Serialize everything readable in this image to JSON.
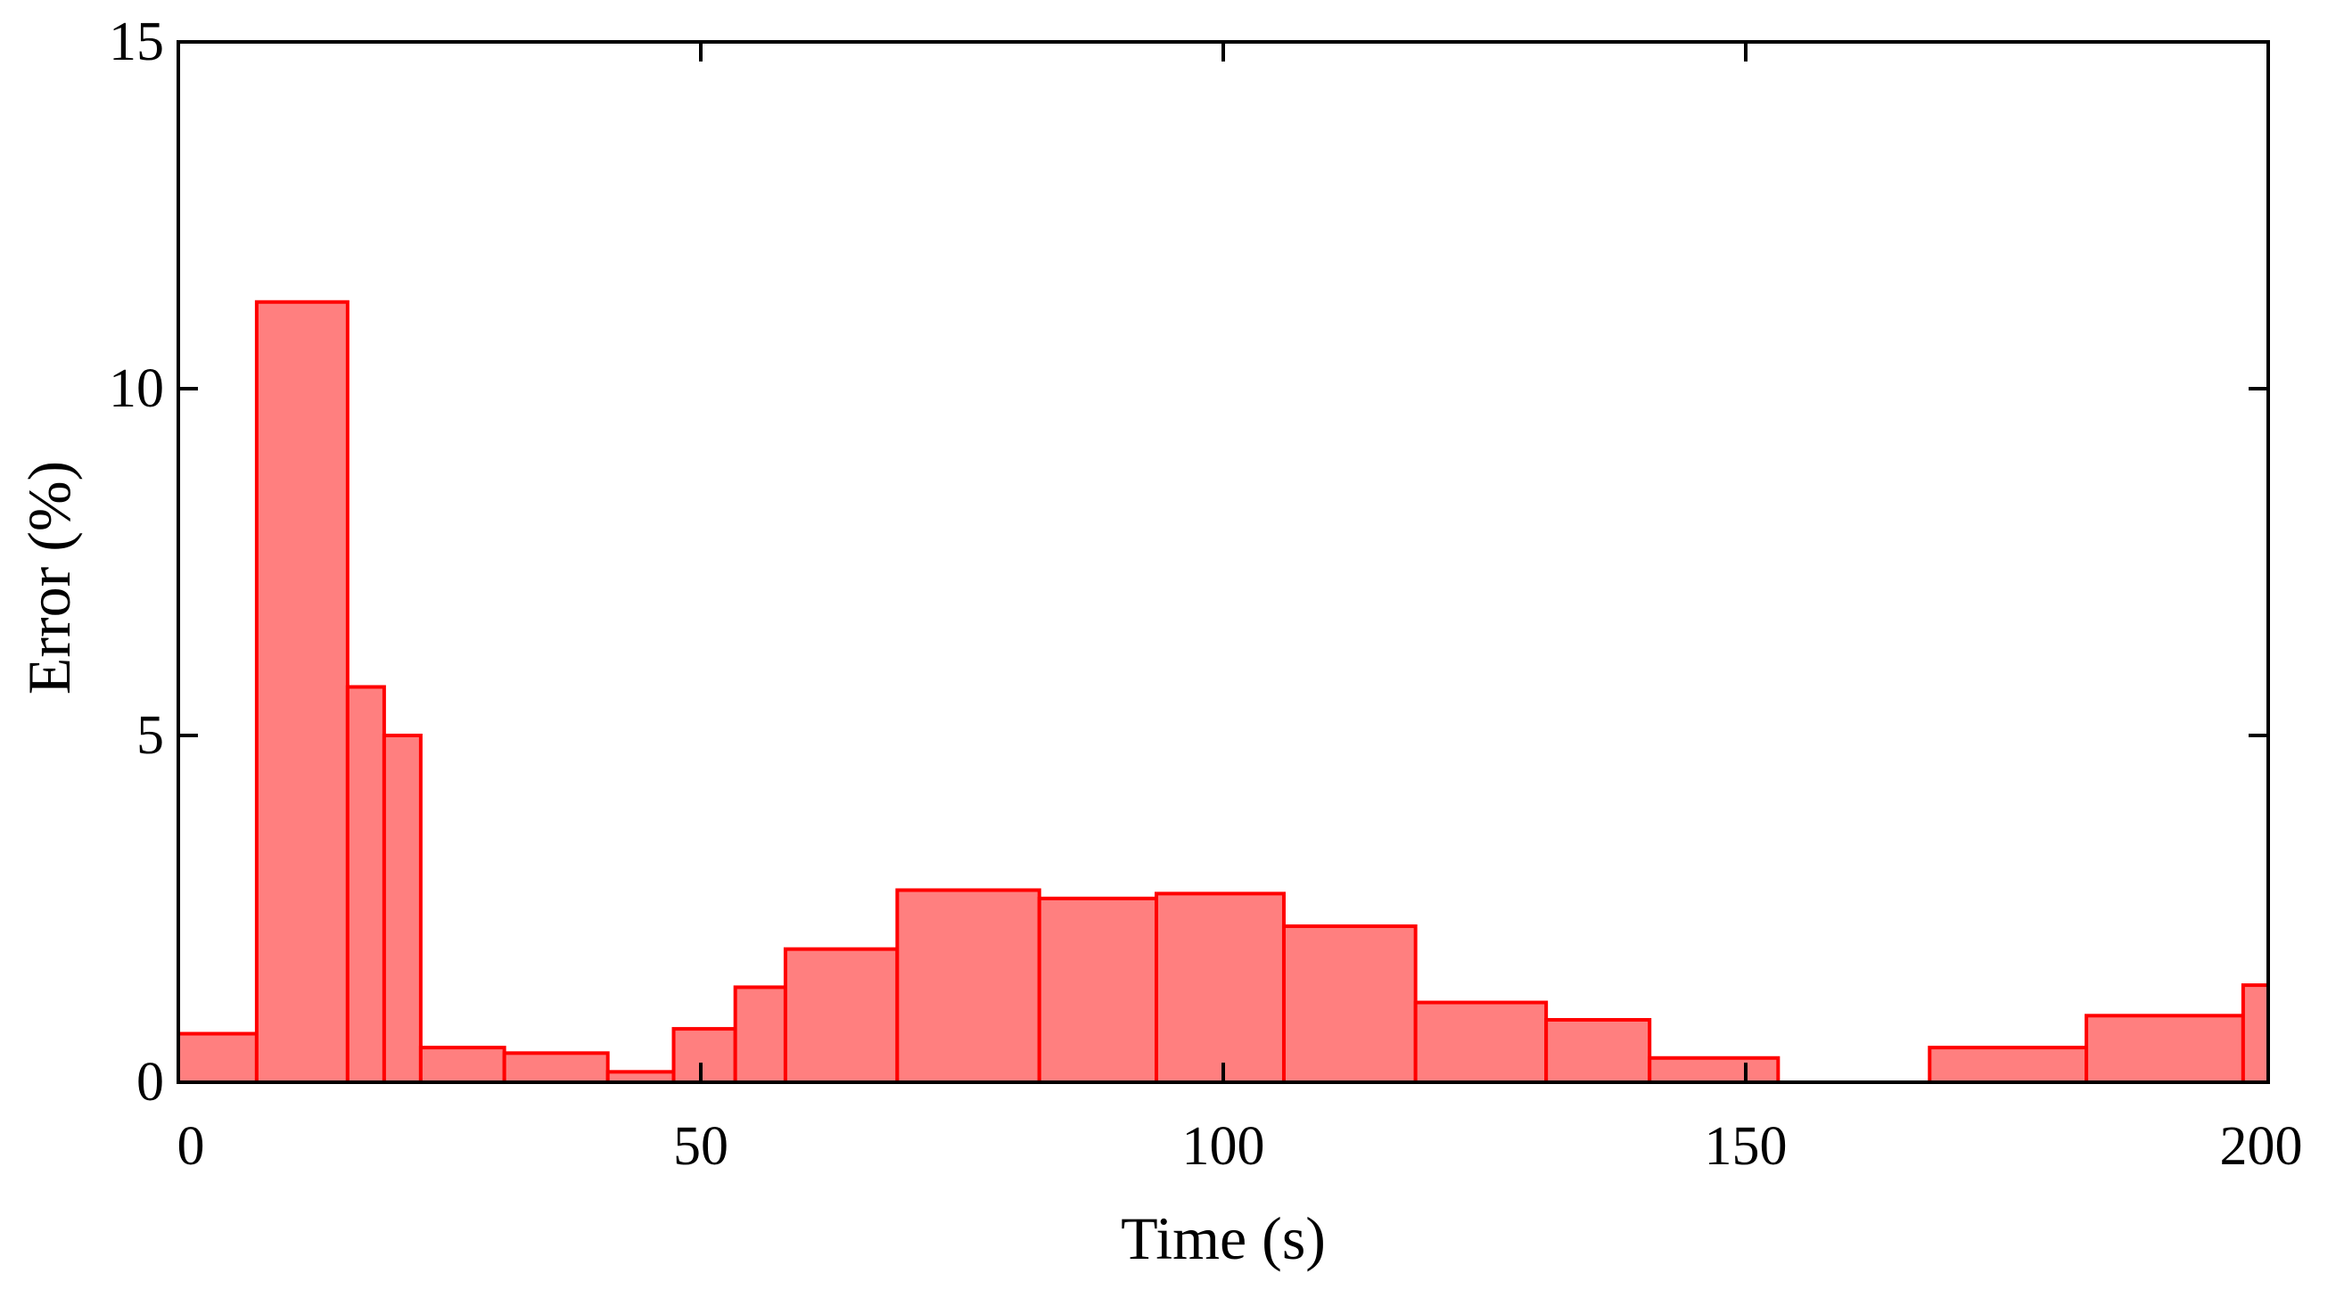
{
  "chart_data": {
    "type": "bar",
    "title": "",
    "xlabel": "Time (s)",
    "ylabel": "Error (%)",
    "xlim": [
      0,
      200
    ],
    "ylim": [
      0,
      15
    ],
    "xticks": [
      0,
      50,
      100,
      150,
      200
    ],
    "yticks": [
      0,
      5,
      10,
      15
    ],
    "grid": false,
    "bin_edges": [
      0,
      7.5,
      16.2,
      19.7,
      23.2,
      31.2,
      41.1,
      47.4,
      53.3,
      58.1,
      68.8,
      82.4,
      93.6,
      105.8,
      118.4,
      130.9,
      140.8,
      153.1,
      167.6,
      182.6,
      197.6,
      200
    ],
    "values": [
      0.7,
      11.25,
      5.7,
      5.0,
      0.5,
      0.42,
      0.15,
      0.77,
      1.37,
      1.92,
      2.77,
      2.65,
      2.72,
      2.25,
      1.15,
      0.9,
      0.35,
      0.0,
      0.5,
      0.96,
      1.4
    ]
  }
}
